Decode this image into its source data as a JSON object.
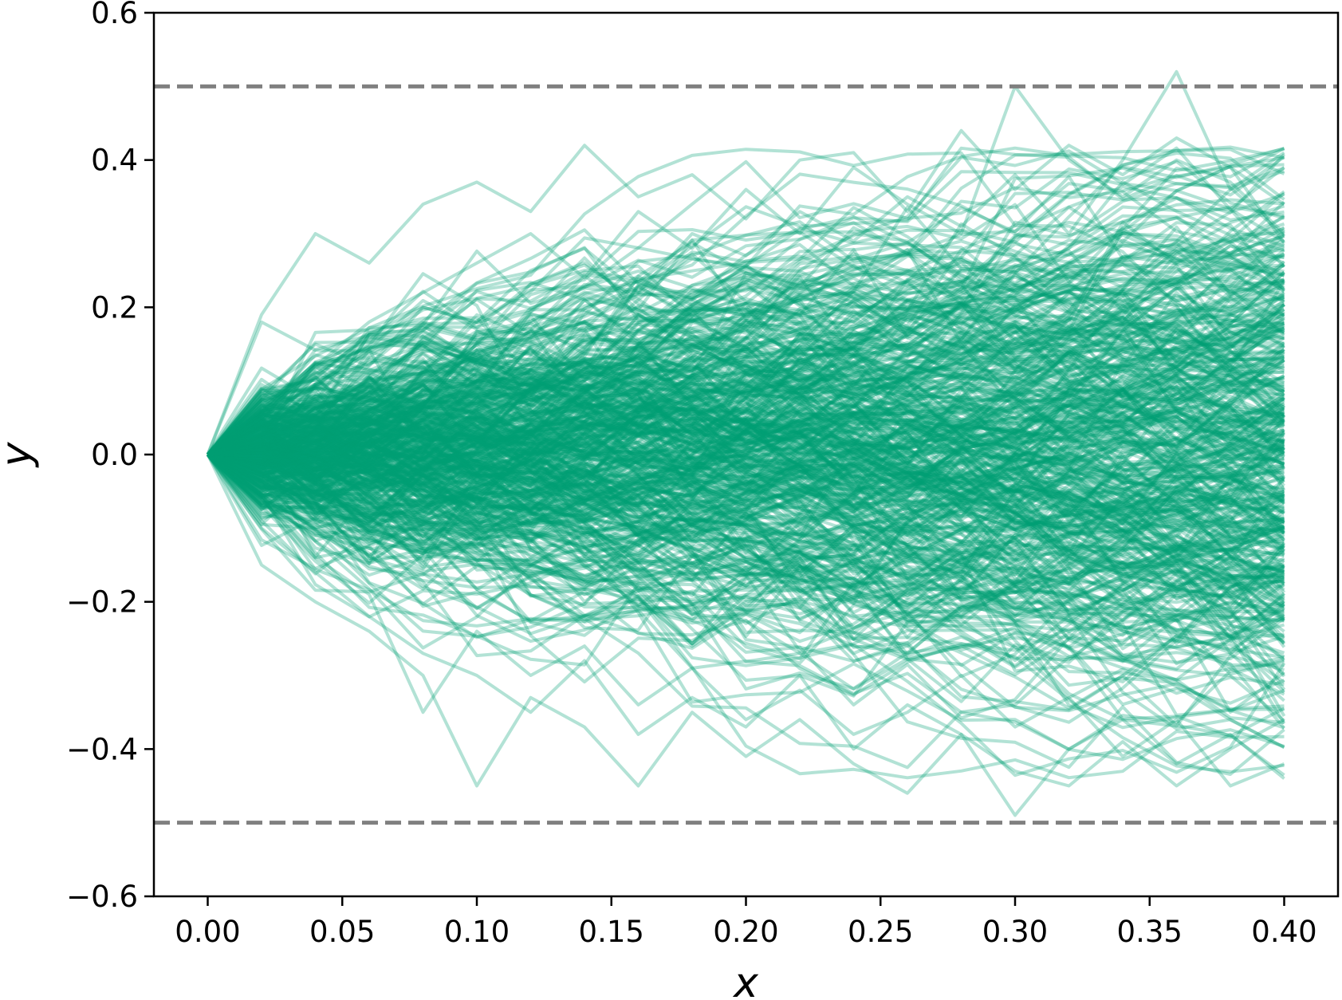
{
  "chart_data": {
    "type": "line",
    "title": "",
    "xlabel": "x",
    "ylabel": "y",
    "xlim": [
      -0.02,
      0.42
    ],
    "ylim": [
      -0.6,
      0.6
    ],
    "x_ticks": [
      0.0,
      0.05,
      0.1,
      0.15,
      0.2,
      0.25,
      0.3,
      0.35,
      0.4
    ],
    "x_tick_labels": [
      "0.00",
      "0.05",
      "0.10",
      "0.15",
      "0.20",
      "0.25",
      "0.30",
      "0.35",
      "0.40"
    ],
    "y_ticks": [
      -0.6,
      -0.4,
      -0.2,
      0.0,
      0.2,
      0.4,
      0.6
    ],
    "y_tick_labels": [
      "−0.6",
      "−0.4",
      "−0.2",
      "0.0",
      "0.2",
      "0.4",
      "0.6"
    ],
    "grid": false,
    "legend": "none",
    "series_style": {
      "color": "#009e73",
      "opacity": 0.3,
      "x_start": 0.0,
      "x_end": 0.4,
      "x_step": 0.02,
      "y_start": 0.0,
      "path_count": 500,
      "step_std": 0.06
    },
    "highlighted_paths": [
      {
        "x": [
          0.0,
          0.02,
          0.04,
          0.06,
          0.08,
          0.1,
          0.12,
          0.14,
          0.16,
          0.18,
          0.2,
          0.22,
          0.24,
          0.26,
          0.28,
          0.3,
          0.32,
          0.34,
          0.36,
          0.38,
          0.4
        ],
        "values": [
          0.0,
          0.08,
          0.15,
          0.12,
          0.2,
          0.18,
          0.25,
          0.28,
          0.22,
          0.3,
          0.27,
          0.33,
          0.29,
          0.35,
          0.31,
          0.38,
          0.3,
          0.4,
          0.52,
          0.36,
          0.41
        ]
      },
      {
        "x": [
          0.0,
          0.02,
          0.04,
          0.06,
          0.08,
          0.1,
          0.12,
          0.14,
          0.16,
          0.18,
          0.2,
          0.22,
          0.24,
          0.26,
          0.28,
          0.3,
          0.32,
          0.34,
          0.36,
          0.38,
          0.4
        ],
        "values": [
          0.0,
          0.19,
          0.3,
          0.26,
          0.34,
          0.37,
          0.33,
          0.42,
          0.35,
          0.38,
          0.32,
          0.4,
          0.41,
          0.33,
          0.44,
          0.36,
          0.42,
          0.38,
          0.43,
          0.39,
          0.34
        ]
      },
      {
        "x": [
          0.0,
          0.02,
          0.04,
          0.06,
          0.08,
          0.1,
          0.12,
          0.14,
          0.16,
          0.18,
          0.2,
          0.22,
          0.24,
          0.26,
          0.28,
          0.3,
          0.32,
          0.34,
          0.36,
          0.38,
          0.4
        ],
        "values": [
          0.0,
          0.05,
          0.12,
          0.18,
          0.22,
          0.26,
          0.3,
          0.24,
          0.33,
          0.28,
          0.36,
          0.3,
          0.39,
          0.34,
          0.3,
          0.5,
          0.4,
          0.35,
          0.4,
          0.37,
          0.3
        ]
      },
      {
        "x": [
          0.0,
          0.02,
          0.04,
          0.06,
          0.08,
          0.1,
          0.12,
          0.14,
          0.16,
          0.18,
          0.2,
          0.22,
          0.24,
          0.26,
          0.28,
          0.3,
          0.32,
          0.34,
          0.36,
          0.38,
          0.4
        ],
        "values": [
          0.0,
          -0.1,
          -0.16,
          -0.22,
          -0.27,
          -0.3,
          -0.35,
          -0.28,
          -0.38,
          -0.33,
          -0.37,
          -0.3,
          -0.4,
          -0.34,
          -0.38,
          -0.49,
          -0.4,
          -0.36,
          -0.42,
          -0.38,
          -0.44
        ]
      },
      {
        "x": [
          0.0,
          0.02,
          0.04,
          0.06,
          0.08,
          0.1,
          0.12,
          0.14,
          0.16,
          0.18,
          0.2,
          0.22,
          0.24,
          0.26,
          0.28,
          0.3,
          0.32,
          0.34,
          0.36,
          0.38,
          0.4
        ],
        "values": [
          0.0,
          -0.15,
          -0.2,
          -0.24,
          -0.3,
          -0.45,
          -0.33,
          -0.37,
          -0.45,
          -0.35,
          -0.41,
          -0.36,
          -0.42,
          -0.46,
          -0.38,
          -0.43,
          -0.45,
          -0.39,
          -0.45,
          -0.4,
          -0.36
        ]
      },
      {
        "x": [
          0.0,
          0.02,
          0.04,
          0.06,
          0.08,
          0.1,
          0.12,
          0.14,
          0.16,
          0.18,
          0.2,
          0.22,
          0.24,
          0.26,
          0.28,
          0.3,
          0.32,
          0.34,
          0.36,
          0.38,
          0.4
        ],
        "values": [
          0.0,
          -0.06,
          -0.14,
          -0.19,
          -0.35,
          -0.24,
          -0.3,
          -0.26,
          -0.34,
          -0.29,
          -0.36,
          -0.32,
          -0.38,
          -0.35,
          -0.3,
          -0.37,
          -0.33,
          -0.41,
          -0.36,
          -0.45,
          -0.42
        ]
      }
    ],
    "reference_lines": [
      {
        "orientation": "horizontal",
        "y": 0.5,
        "style": "dashed",
        "color": "#808080"
      },
      {
        "orientation": "horizontal",
        "y": -0.5,
        "style": "dashed",
        "color": "#808080"
      }
    ]
  }
}
